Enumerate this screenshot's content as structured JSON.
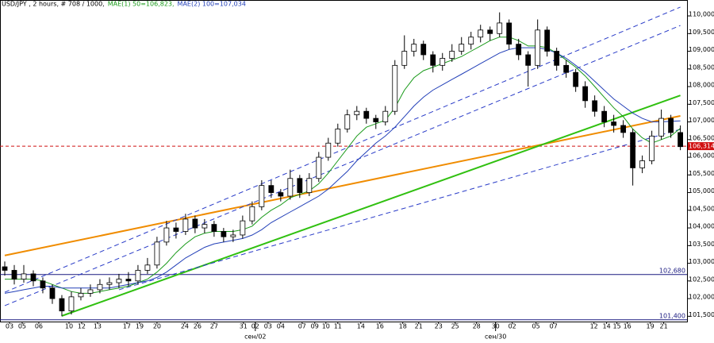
{
  "chart_data": {
    "type": "candlestick",
    "title": "USD/JPY , 2 hours, # 708 / 1000,",
    "open": [
      102.9,
      102.8,
      102.55,
      102.7,
      102.5,
      102.3,
      102.0,
      101.65,
      102.05,
      102.15,
      102.25,
      102.4,
      102.45,
      102.55,
      102.5,
      102.8,
      102.95,
      103.6,
      104.0,
      103.9,
      104.25,
      104.0,
      104.1,
      103.9,
      103.75,
      103.8,
      104.2,
      104.6,
      105.2,
      105.0,
      104.9,
      105.4,
      105.0,
      105.4,
      106.0,
      106.4,
      106.8,
      107.2,
      107.3,
      107.1,
      107.0,
      107.3,
      108.6,
      109.0,
      109.2,
      108.9,
      108.6,
      108.8,
      109.0,
      109.2,
      109.4,
      109.6,
      109.5,
      109.8,
      109.2,
      108.9,
      108.6,
      109.6,
      109.0,
      108.6,
      108.4,
      108.0,
      107.6,
      107.3,
      107.0,
      106.9,
      106.7,
      105.7,
      105.9,
      106.6,
      107.1,
      106.7
    ],
    "high": [
      103.05,
      102.95,
      102.95,
      102.8,
      102.6,
      102.4,
      102.1,
      102.2,
      102.3,
      102.4,
      102.55,
      102.6,
      102.7,
      102.75,
      102.95,
      103.15,
      103.75,
      104.2,
      104.15,
      104.4,
      104.35,
      104.25,
      104.2,
      104.0,
      103.95,
      104.35,
      104.75,
      105.35,
      105.35,
      105.1,
      105.65,
      105.5,
      105.55,
      106.15,
      106.55,
      106.95,
      107.35,
      107.45,
      107.4,
      107.2,
      107.45,
      108.75,
      109.45,
      109.35,
      109.3,
      109.0,
      108.95,
      109.2,
      109.4,
      109.55,
      109.75,
      109.7,
      110.1,
      109.9,
      109.35,
      109.0,
      109.9,
      109.7,
      109.1,
      108.75,
      108.5,
      108.15,
      107.75,
      107.45,
      107.2,
      107.05,
      106.8,
      106.05,
      106.75,
      107.35,
      107.2,
      106.9
    ],
    "low": [
      102.65,
      102.4,
      102.45,
      102.35,
      102.15,
      101.85,
      101.5,
      101.55,
      101.95,
      102.05,
      102.15,
      102.25,
      102.3,
      102.35,
      102.4,
      102.7,
      102.85,
      103.5,
      103.7,
      103.8,
      103.85,
      103.85,
      103.75,
      103.6,
      103.6,
      103.7,
      104.1,
      104.5,
      104.85,
      104.75,
      104.8,
      104.85,
      104.9,
      105.3,
      105.9,
      106.3,
      106.7,
      107.05,
      106.95,
      106.8,
      106.9,
      107.2,
      108.5,
      108.85,
      108.75,
      108.4,
      108.45,
      108.7,
      108.9,
      109.05,
      109.25,
      109.3,
      109.4,
      109.05,
      108.75,
      108.0,
      108.5,
      108.85,
      108.45,
      108.25,
      107.85,
      107.4,
      107.15,
      106.85,
      106.7,
      106.55,
      105.2,
      105.55,
      105.8,
      106.5,
      106.55,
      106.2
    ],
    "close": [
      102.8,
      102.55,
      102.7,
      102.5,
      102.3,
      102.0,
      101.65,
      102.05,
      102.15,
      102.25,
      102.4,
      102.45,
      102.55,
      102.5,
      102.8,
      102.95,
      103.6,
      104.0,
      103.9,
      104.25,
      104.0,
      104.1,
      103.9,
      103.75,
      103.8,
      104.2,
      104.6,
      105.2,
      105.0,
      104.9,
      105.4,
      105.0,
      105.4,
      106.0,
      106.4,
      106.8,
      107.2,
      107.3,
      107.1,
      107.0,
      107.3,
      108.6,
      109.0,
      109.2,
      108.9,
      108.6,
      108.8,
      109.0,
      109.2,
      109.4,
      109.6,
      109.5,
      109.8,
      109.2,
      108.9,
      108.6,
      109.6,
      109.0,
      108.6,
      108.4,
      108.0,
      107.6,
      107.3,
      107.0,
      106.9,
      106.7,
      105.7,
      105.9,
      106.6,
      107.1,
      106.7,
      106.3
    ],
    "series": [
      {
        "name": "MAE(1) 50=106,823,",
        "color": "#1a9a1a",
        "values": [
          102.55,
          102.55,
          102.55,
          102.55,
          102.5,
          102.4,
          102.3,
          102.2,
          102.15,
          102.15,
          102.2,
          102.25,
          102.3,
          102.35,
          102.45,
          102.55,
          102.75,
          103.0,
          103.3,
          103.55,
          103.75,
          103.85,
          103.9,
          103.9,
          103.9,
          103.95,
          104.05,
          104.3,
          104.5,
          104.65,
          104.85,
          104.95,
          105.05,
          105.25,
          105.55,
          105.9,
          106.25,
          106.6,
          106.85,
          106.95,
          107.05,
          107.4,
          107.9,
          108.25,
          108.45,
          108.55,
          108.65,
          108.75,
          108.85,
          109.0,
          109.15,
          109.3,
          109.4,
          109.4,
          109.3,
          109.15,
          109.15,
          109.1,
          108.95,
          108.75,
          108.55,
          108.3,
          108.0,
          107.7,
          107.4,
          107.15,
          106.8,
          106.55,
          106.4,
          106.5,
          106.6,
          106.82
        ]
      },
      {
        "name": "MAE(2) 100=107,034",
        "color": "#2340b8",
        "values": [
          102.15,
          102.2,
          102.25,
          102.3,
          102.35,
          102.35,
          102.3,
          102.3,
          102.3,
          102.3,
          102.3,
          102.3,
          102.35,
          102.4,
          102.45,
          102.5,
          102.6,
          102.75,
          102.95,
          103.15,
          103.3,
          103.45,
          103.55,
          103.6,
          103.65,
          103.7,
          103.8,
          103.95,
          104.15,
          104.3,
          104.45,
          104.6,
          104.75,
          104.9,
          105.1,
          105.35,
          105.6,
          105.9,
          106.15,
          106.4,
          106.6,
          106.85,
          107.15,
          107.45,
          107.7,
          107.9,
          108.05,
          108.2,
          108.35,
          108.5,
          108.65,
          108.8,
          108.95,
          109.05,
          109.1,
          109.1,
          109.1,
          109.05,
          108.95,
          108.8,
          108.6,
          108.4,
          108.15,
          107.9,
          107.65,
          107.45,
          107.25,
          107.1,
          107.0,
          107.0,
          107.02,
          107.03
        ]
      }
    ],
    "ylim": [
      101.35,
      110.45
    ],
    "yticks": [
      {
        "value": 101.5,
        "label": "101,500"
      },
      {
        "value": 102,
        "label": "102,000"
      },
      {
        "value": 102.5,
        "label": "102,500"
      },
      {
        "value": 103,
        "label": "103,000"
      },
      {
        "value": 103.5,
        "label": "103,500"
      },
      {
        "value": 104,
        "label": "104,000"
      },
      {
        "value": 104.5,
        "label": "104,500"
      },
      {
        "value": 105,
        "label": "105,000"
      },
      {
        "value": 105.5,
        "label": "105,500"
      },
      {
        "value": 106,
        "label": "106,000"
      },
      {
        "value": 106.5,
        "label": "106,500"
      },
      {
        "value": 107,
        "label": "107,000"
      },
      {
        "value": 107.5,
        "label": "107,500"
      },
      {
        "value": 108,
        "label": "108,000"
      },
      {
        "value": 108.5,
        "label": "108,500"
      },
      {
        "value": 109,
        "label": "109,000"
      },
      {
        "value": 109.5,
        "label": "109,500"
      },
      {
        "value": 110,
        "label": "110,000"
      }
    ],
    "xlim": [
      -0.5,
      71.7
    ],
    "xticks": [
      {
        "value": 0.5,
        "label": "03"
      },
      {
        "value": 1.83,
        "label": "05"
      },
      {
        "value": 3.58,
        "label": "06"
      },
      {
        "value": 6.75,
        "label": "10"
      },
      {
        "value": 8.08,
        "label": "12"
      },
      {
        "value": 9.75,
        "label": "13"
      },
      {
        "value": 12.83,
        "label": "17"
      },
      {
        "value": 14.17,
        "label": "19"
      },
      {
        "value": 16,
        "label": "20"
      },
      {
        "value": 18.92,
        "label": "24"
      },
      {
        "value": 20.25,
        "label": "26"
      },
      {
        "value": 22,
        "label": "27"
      },
      {
        "value": 25.08,
        "label": "31"
      },
      {
        "value": 26.33,
        "label": "02"
      },
      {
        "value": 27.67,
        "label": "03"
      },
      {
        "value": 29,
        "label": "04"
      },
      {
        "value": 31.25,
        "label": "07"
      },
      {
        "value": 32.58,
        "label": "09"
      },
      {
        "value": 33.75,
        "label": "10"
      },
      {
        "value": 35,
        "label": "11"
      },
      {
        "value": 37.42,
        "label": "14"
      },
      {
        "value": 39.42,
        "label": "16"
      },
      {
        "value": 41.83,
        "label": "18"
      },
      {
        "value": 43.5,
        "label": "21"
      },
      {
        "value": 45.58,
        "label": "23"
      },
      {
        "value": 47.33,
        "label": "25"
      },
      {
        "value": 49.58,
        "label": "28"
      },
      {
        "value": 51.58,
        "label": "30"
      },
      {
        "value": 53.33,
        "label": "02"
      },
      {
        "value": 55.83,
        "label": "05"
      },
      {
        "value": 57.67,
        "label": "07"
      },
      {
        "value": 61.92,
        "label": "12"
      },
      {
        "value": 63.25,
        "label": "14"
      },
      {
        "value": 64.33,
        "label": "15"
      },
      {
        "value": 65.42,
        "label": "16"
      },
      {
        "value": 67.83,
        "label": "19"
      },
      {
        "value": 69.25,
        "label": "21"
      }
    ],
    "month_ticks": [
      {
        "value": 26.33,
        "label": "сен/02"
      },
      {
        "value": 51.58,
        "label": "сен/30"
      }
    ],
    "trend_lines": [
      {
        "color": "#f08c00",
        "style": "solid",
        "x": [
          0,
          71
        ],
        "y": [
          103.22,
          107.17
        ]
      },
      {
        "color": "#30c010",
        "style": "solid",
        "x": [
          6,
          71
        ],
        "y": [
          101.51,
          107.75
        ]
      },
      {
        "color": "#2a3cc8",
        "style": "dashed",
        "x": [
          0,
          71
        ],
        "y": [
          102.18,
          110.25
        ]
      },
      {
        "color": "#2a3cc8",
        "style": "dashed",
        "x": [
          0,
          71
        ],
        "y": [
          101.8,
          109.73
        ]
      },
      {
        "color": "#2a3cc8",
        "style": "dashed",
        "x": [
          12,
          71
        ],
        "y": [
          102.25,
          106.79
        ]
      }
    ],
    "price_lines": [
      {
        "value": 106.314,
        "label": "106,314",
        "color": "#d01010",
        "style": "dashed"
      },
      {
        "value": 102.68,
        "label": "102,680",
        "color": "#1a1a80",
        "style": "solid"
      },
      {
        "value": 101.4,
        "label": "101,400",
        "color": "#1a1a80",
        "style": "solid"
      }
    ]
  }
}
